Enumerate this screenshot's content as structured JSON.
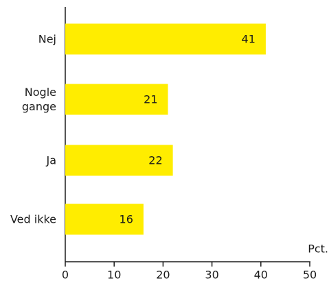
{
  "chart_data": {
    "type": "hbar",
    "categories": [
      "Nej",
      "Nogle gange",
      "Ja",
      "Ved ikke"
    ],
    "values": [
      41,
      21,
      22,
      16
    ],
    "color": "#ffed00",
    "xlim": [
      0,
      50
    ],
    "xticks": [
      0,
      10,
      20,
      30,
      40,
      50
    ],
    "x_label": "Pct."
  }
}
